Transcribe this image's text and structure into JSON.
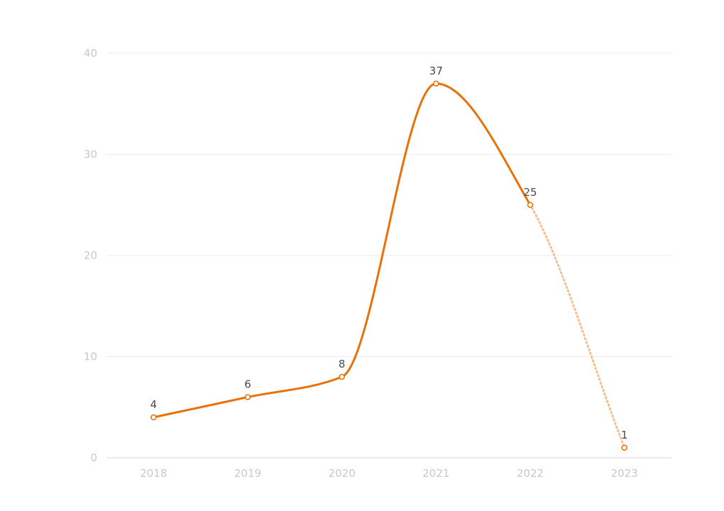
{
  "chart_data": {
    "type": "line",
    "title": "",
    "xlabel": "",
    "ylabel": "",
    "categories": [
      "2018",
      "2019",
      "2020",
      "2021",
      "2022",
      "2023"
    ],
    "series": [
      {
        "values": [
          4,
          6,
          8,
          37,
          25,
          1
        ],
        "color": "#e8710a",
        "projected_color": "#f5bf8f",
        "projected_from_index": 4
      }
    ],
    "y_ticks": [
      "0",
      "10",
      "20",
      "30",
      "40"
    ],
    "ylim": [
      0,
      40
    ],
    "grid": true,
    "legend": "none",
    "data_labels": [
      "4",
      "6",
      "8",
      "37",
      "25",
      "1"
    ],
    "smooth": true
  }
}
